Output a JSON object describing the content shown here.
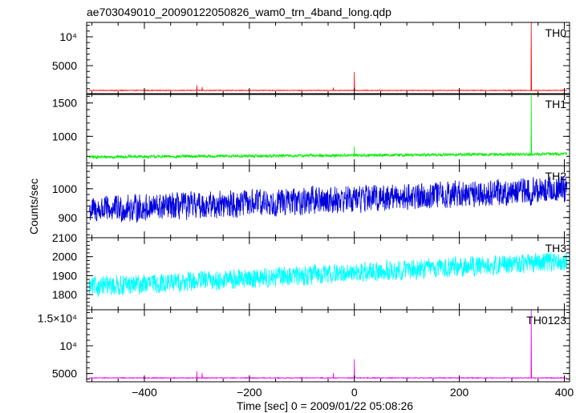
{
  "chart_data": {
    "type": "line",
    "title": "ae703049010_20090122050826_wam0_trn_4band_long.qdp",
    "xlabel": "Time [sec] 0 = 2009/01/22 05:08:26",
    "ylabel": "Counts/sec",
    "xlim": [
      -510,
      410
    ],
    "x_ticks": [
      -400,
      -200,
      0,
      200,
      400
    ],
    "x_tick_labels": [
      "−400",
      "−200",
      "0",
      "200",
      "400"
    ],
    "grid": false,
    "panels": [
      {
        "name": "TH0",
        "color": "#ff0000",
        "ylim": [
          0,
          12500
        ],
        "y_ticks": [
          5000,
          10000
        ],
        "y_tick_labels": [
          "5000",
          "10⁴"
        ],
        "baseline": 700,
        "noise": 60,
        "trend": 0,
        "spikes": [
          {
            "x": 337,
            "y": 12500
          },
          {
            "x": 0,
            "y": 3900
          },
          {
            "x": -300,
            "y": 1600
          },
          {
            "x": -290,
            "y": 1300
          },
          {
            "x": -40,
            "y": 1200
          }
        ]
      },
      {
        "name": "TH1",
        "color": "#00ee00",
        "ylim": [
          560,
          1640
        ],
        "y_ticks": [
          1000,
          1500
        ],
        "y_tick_labels": [
          "1000",
          "1500"
        ],
        "baseline": 690,
        "noise": 22,
        "trend": 0.05,
        "spikes": [
          {
            "x": 337,
            "y": 1640
          },
          {
            "x": 0,
            "y": 850
          }
        ]
      },
      {
        "name": "TH2",
        "color": "#0000dd",
        "ylim": [
          830,
          1080
        ],
        "y_ticks": [
          900,
          1000
        ],
        "y_tick_labels": [
          "900",
          "1000"
        ],
        "baseline": 925,
        "noise": 45,
        "trend": 0.08,
        "spikes": []
      },
      {
        "name": "TH3",
        "color": "#00ffff",
        "ylim": [
          1720,
          2100
        ],
        "y_ticks": [
          1800,
          1900,
          2000,
          2100
        ],
        "y_tick_labels": [
          "1800",
          "1900",
          "2000",
          "2100"
        ],
        "baseline": 1840,
        "noise": 50,
        "trend": 0.15,
        "spikes": []
      },
      {
        "name": "TH0123",
        "color": "#ee00ee",
        "ylim": [
          3500,
          16500
        ],
        "y_ticks": [
          5000,
          10000,
          15000
        ],
        "y_tick_labels": [
          "5000",
          "10⁴",
          "1.5×10⁴"
        ],
        "baseline": 4200,
        "noise": 80,
        "trend": 0,
        "spikes": [
          {
            "x": 337,
            "y": 16500
          },
          {
            "x": 0,
            "y": 7600
          },
          {
            "x": -300,
            "y": 5400
          },
          {
            "x": -290,
            "y": 5100
          },
          {
            "x": -40,
            "y": 5100
          }
        ]
      }
    ]
  }
}
